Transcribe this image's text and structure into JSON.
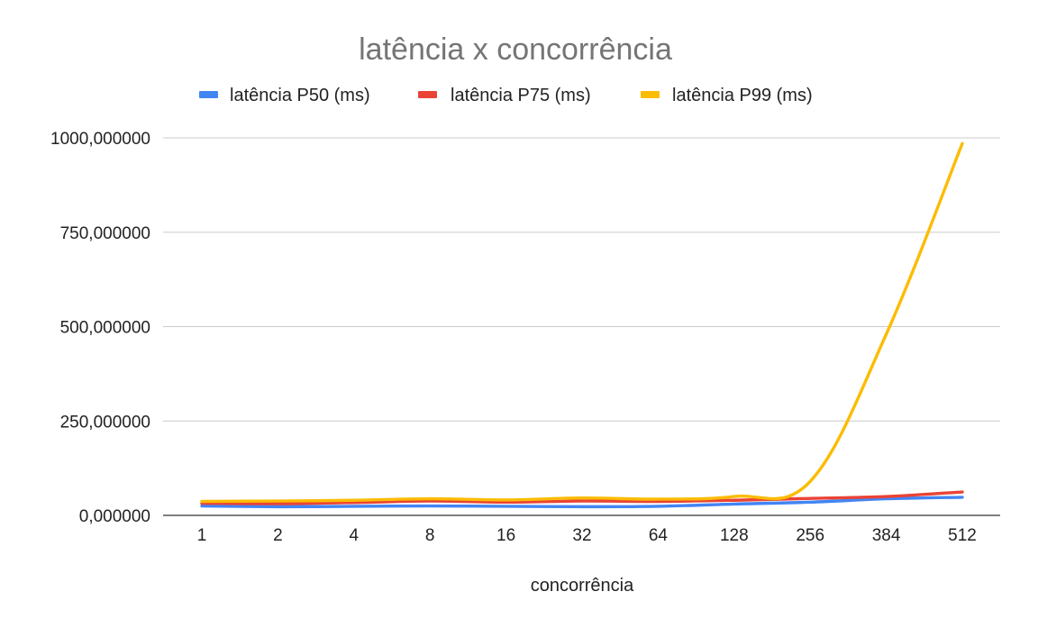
{
  "chart_data": {
    "type": "line",
    "title": "latência x concorrência",
    "xlabel": "concorrência",
    "ylabel": "",
    "categories": [
      "1",
      "2",
      "4",
      "8",
      "16",
      "32",
      "64",
      "128",
      "256",
      "384",
      "512"
    ],
    "ylim": [
      0,
      1000
    ],
    "yticks": [
      0,
      250,
      500,
      750,
      1000
    ],
    "ytick_labels": [
      "0,000000",
      "250,000000",
      "500,000000",
      "750,000000",
      "1000,000000"
    ],
    "grid": true,
    "legend_position": "top",
    "series": [
      {
        "name": "latência P50 (ms)",
        "color": "#4285F4",
        "values": [
          25,
          23,
          24,
          25,
          24,
          23,
          24,
          30,
          35,
          44,
          48
        ]
      },
      {
        "name": "latência P75 (ms)",
        "color": "#EA4335",
        "values": [
          32,
          31,
          34,
          38,
          35,
          38,
          37,
          40,
          45,
          50,
          62
        ]
      },
      {
        "name": "latência P99 (ms)",
        "color": "#FBBC04",
        "values": [
          37,
          38,
          40,
          44,
          41,
          46,
          43,
          50,
          90,
          480,
          985
        ]
      }
    ]
  }
}
